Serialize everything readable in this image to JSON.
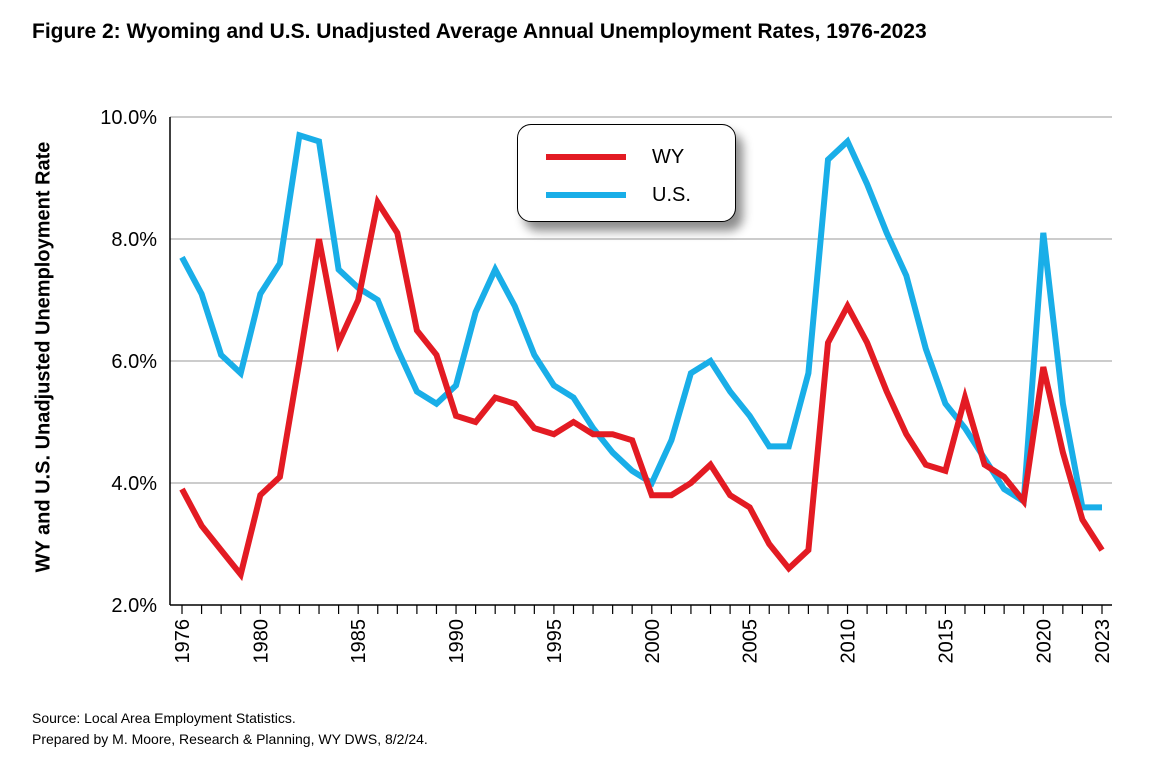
{
  "header": {
    "title": "Figure 2: Wyoming and U.S. Unadjusted Average Annual Unemployment Rates, 1976-2023"
  },
  "footer": {
    "source": "Source: Local Area Employment Statistics.",
    "prepared": "Prepared by M. Moore, Research & Planning, WY DWS, 8/2/24."
  },
  "chart_data": {
    "type": "line",
    "title": "Figure 2: Wyoming and U.S. Unadjusted Average Annual Unemployment Rates, 1976-2023",
    "xlabel": "",
    "ylabel": "WY and U.S. Unadjusted Unemployment Rate",
    "ylim": [
      2.0,
      10.0
    ],
    "xlim": [
      1976,
      2023
    ],
    "y_ticks": [
      "2.0%",
      "4.0%",
      "6.0%",
      "8.0%",
      "10.0%"
    ],
    "y_tick_values": [
      2,
      4,
      6,
      8,
      10
    ],
    "x_tick_labels": [
      "1976",
      "1980",
      "1985",
      "1990",
      "1995",
      "2000",
      "2005",
      "2010",
      "2015",
      "2020",
      "2023"
    ],
    "x_tick_values": [
      1976,
      1980,
      1985,
      1990,
      1995,
      2000,
      2005,
      2010,
      2015,
      2020,
      2023
    ],
    "grid": true,
    "legend_position": "top-center",
    "x": [
      1976,
      1977,
      1978,
      1979,
      1980,
      1981,
      1982,
      1983,
      1984,
      1985,
      1986,
      1987,
      1988,
      1989,
      1990,
      1991,
      1992,
      1993,
      1994,
      1995,
      1996,
      1997,
      1998,
      1999,
      2000,
      2001,
      2002,
      2003,
      2004,
      2005,
      2006,
      2007,
      2008,
      2009,
      2010,
      2011,
      2012,
      2013,
      2014,
      2015,
      2016,
      2017,
      2018,
      2019,
      2020,
      2021,
      2022,
      2023
    ],
    "series": [
      {
        "name": "WY",
        "color": "#e31b23",
        "values": [
          3.9,
          3.3,
          2.9,
          2.5,
          3.8,
          4.1,
          6.0,
          8.0,
          6.3,
          7.0,
          8.6,
          8.1,
          6.5,
          6.1,
          5.1,
          5.0,
          5.4,
          5.3,
          4.9,
          4.8,
          5.0,
          4.8,
          4.8,
          4.7,
          3.8,
          3.8,
          4.0,
          4.3,
          3.8,
          3.6,
          3.0,
          2.6,
          2.9,
          6.3,
          6.9,
          6.3,
          5.5,
          4.8,
          4.3,
          4.2,
          5.4,
          4.3,
          4.1,
          3.7,
          5.9,
          4.5,
          3.4,
          2.9
        ]
      },
      {
        "name": "U.S.",
        "color": "#19aee8",
        "values": [
          7.7,
          7.1,
          6.1,
          5.8,
          7.1,
          7.6,
          9.7,
          9.6,
          7.5,
          7.2,
          7.0,
          6.2,
          5.5,
          5.3,
          5.6,
          6.8,
          7.5,
          6.9,
          6.1,
          5.6,
          5.4,
          4.9,
          4.5,
          4.2,
          4.0,
          4.7,
          5.8,
          6.0,
          5.5,
          5.1,
          4.6,
          4.6,
          5.8,
          9.3,
          9.6,
          8.9,
          8.1,
          7.4,
          6.2,
          5.3,
          4.9,
          4.4,
          3.9,
          3.7,
          8.1,
          5.3,
          3.6,
          3.6
        ]
      }
    ]
  }
}
